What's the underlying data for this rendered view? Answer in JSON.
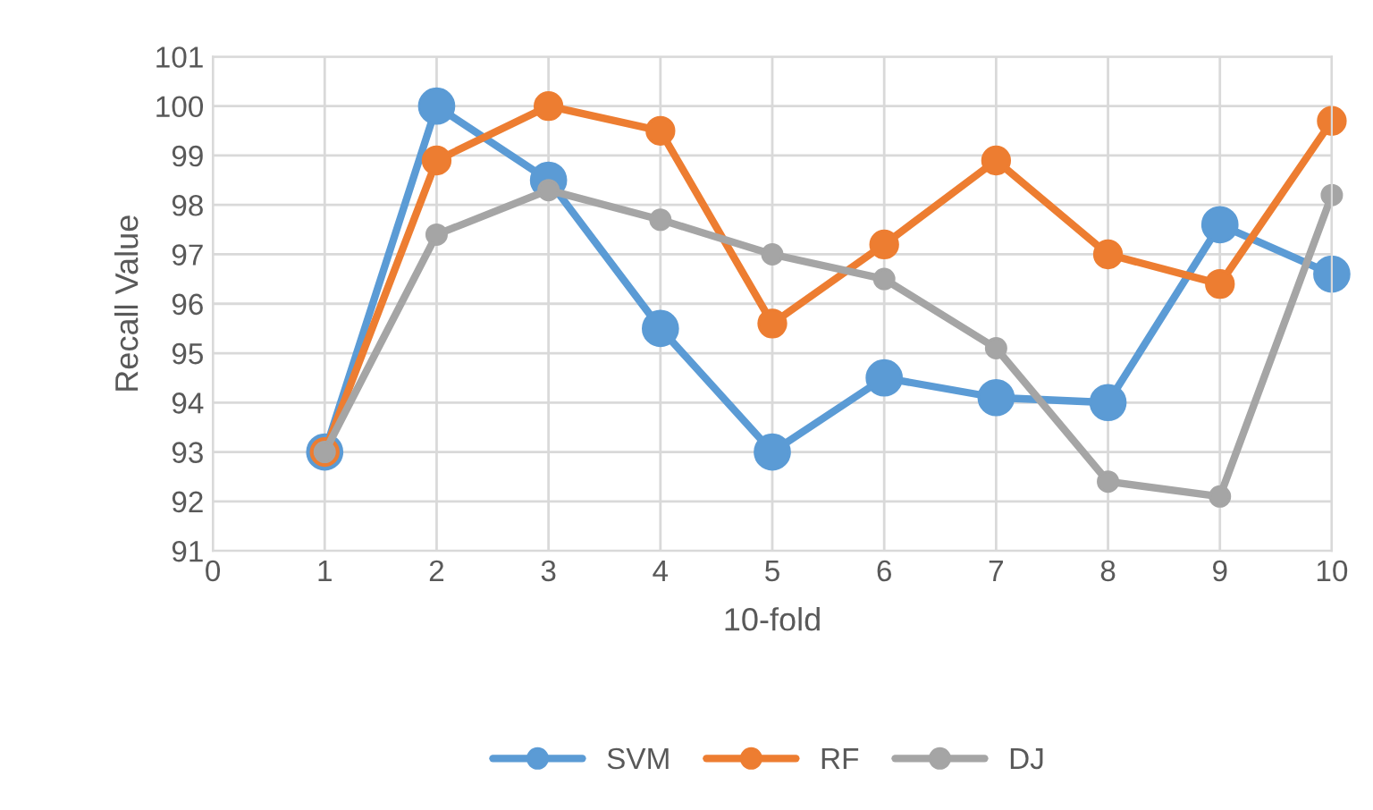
{
  "chart_data": {
    "type": "line",
    "xlabel": "10-fold",
    "ylabel": "Recall Value",
    "x": [
      1,
      2,
      3,
      4,
      5,
      6,
      7,
      8,
      9,
      10
    ],
    "series": [
      {
        "name": "SVM",
        "color": "#5b9bd5",
        "values": [
          93,
          100,
          98.5,
          95.5,
          93,
          94.5,
          94.1,
          94.0,
          97.6,
          96.6
        ]
      },
      {
        "name": "RF",
        "color": "#ed7d31",
        "values": [
          93,
          98.9,
          100,
          99.5,
          95.6,
          97.2,
          98.9,
          97.0,
          96.4,
          99.7
        ]
      },
      {
        "name": "DJ",
        "color": "#a5a5a5",
        "values": [
          93,
          97.4,
          98.3,
          97.7,
          97.0,
          96.5,
          95.1,
          92.4,
          92.1,
          98.2
        ]
      }
    ],
    "xlim": [
      0,
      10
    ],
    "xticks": [
      0,
      1,
      2,
      3,
      4,
      5,
      6,
      7,
      8,
      9,
      10
    ],
    "ylim": [
      91,
      101
    ],
    "yticks": [
      91,
      92,
      93,
      94,
      95,
      96,
      97,
      98,
      99,
      100,
      101
    ],
    "grid": true,
    "legend": "bottom",
    "marker": "circle",
    "line_style": "solid"
  }
}
